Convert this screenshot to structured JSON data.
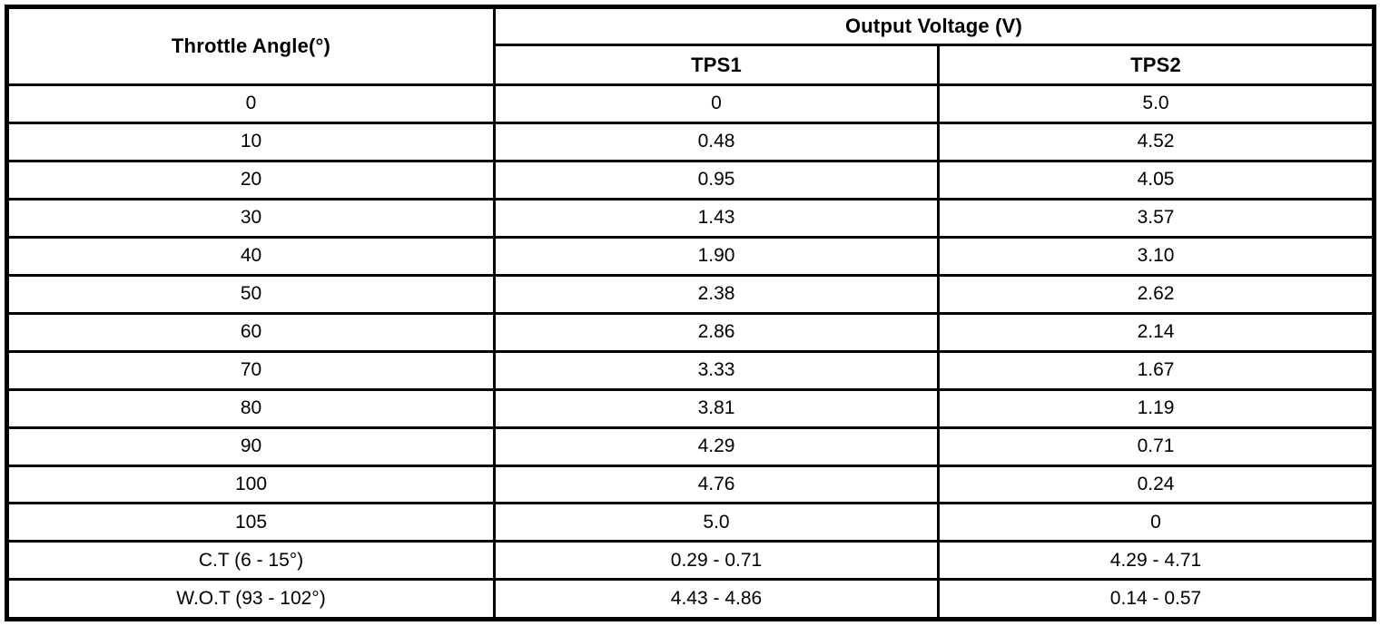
{
  "table": {
    "angle_header": "Throttle Angle(°)",
    "group_header": "Output Voltage (V)",
    "sub_headers": [
      "TPS1",
      "TPS2"
    ],
    "rows": [
      {
        "angle": "0",
        "tps1": "0",
        "tps2": "5.0"
      },
      {
        "angle": "10",
        "tps1": "0.48",
        "tps2": "4.52"
      },
      {
        "angle": "20",
        "tps1": "0.95",
        "tps2": "4.05"
      },
      {
        "angle": "30",
        "tps1": "1.43",
        "tps2": "3.57"
      },
      {
        "angle": "40",
        "tps1": "1.90",
        "tps2": "3.10"
      },
      {
        "angle": "50",
        "tps1": "2.38",
        "tps2": "2.62"
      },
      {
        "angle": "60",
        "tps1": "2.86",
        "tps2": "2.14"
      },
      {
        "angle": "70",
        "tps1": "3.33",
        "tps2": "1.67"
      },
      {
        "angle": "80",
        "tps1": "3.81",
        "tps2": "1.19"
      },
      {
        "angle": "90",
        "tps1": "4.29",
        "tps2": "0.71"
      },
      {
        "angle": "100",
        "tps1": "4.76",
        "tps2": "0.24"
      },
      {
        "angle": "105",
        "tps1": "5.0",
        "tps2": "0"
      },
      {
        "angle": "C.T (6 - 15°)",
        "tps1": "0.29 - 0.71",
        "tps2": "4.29 - 4.71"
      },
      {
        "angle": "W.O.T (93 - 102°)",
        "tps1": "4.43 - 4.86",
        "tps2": "0.14 - 0.57"
      }
    ],
    "colors": {
      "border": "#000000",
      "background": "#ffffff",
      "text": "#000000"
    }
  }
}
